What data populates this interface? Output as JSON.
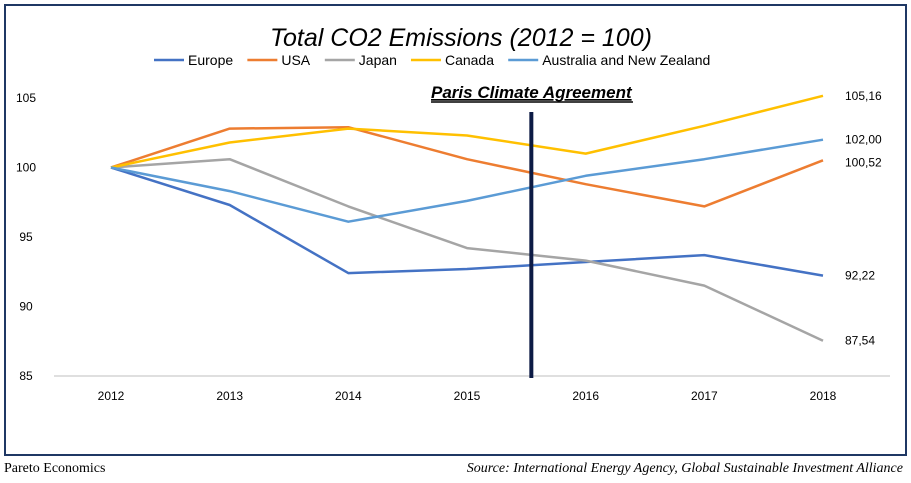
{
  "footer": {
    "left": "Pareto Economics",
    "right": "Source: International Energy Agency, Global Sustainable Investment Alliance"
  },
  "chart_data": {
    "type": "line",
    "title": "Total CO2 Emissions (2012 = 100)",
    "xlabel": "",
    "ylabel": "",
    "x": [
      "2012",
      "2013",
      "2014",
      "2015",
      "2016",
      "2017",
      "2018"
    ],
    "ylim": [
      85,
      105
    ],
    "yticks": [
      85,
      90,
      95,
      100,
      105
    ],
    "grid": false,
    "legend_position": "top",
    "series": [
      {
        "name": "Europe",
        "color": "#4472c4",
        "values": [
          100,
          97.3,
          92.4,
          92.7,
          93.2,
          93.7,
          92.22
        ],
        "end_label": "92,22"
      },
      {
        "name": "USA",
        "color": "#ed7d31",
        "values": [
          100,
          102.8,
          102.9,
          100.6,
          98.8,
          97.2,
          100.52
        ],
        "end_label": "100,52"
      },
      {
        "name": "Japan",
        "color": "#a5a5a5",
        "values": [
          100,
          100.6,
          97.2,
          94.2,
          93.3,
          91.5,
          87.54
        ],
        "end_label": "87,54"
      },
      {
        "name": "Canada",
        "color": "#ffc000",
        "values": [
          100,
          101.8,
          102.8,
          102.3,
          101.0,
          103.0,
          105.16
        ],
        "end_label": "105,16"
      },
      {
        "name": "Australia and New Zealand",
        "color": "#5b9bd5",
        "values": [
          100,
          98.3,
          96.1,
          97.6,
          99.4,
          100.6,
          102.0
        ],
        "end_label": "102,00"
      }
    ],
    "annotation": {
      "label": "Paris Climate Agreement",
      "between": [
        "2015",
        "2016"
      ],
      "color": "#0d1b45"
    }
  }
}
